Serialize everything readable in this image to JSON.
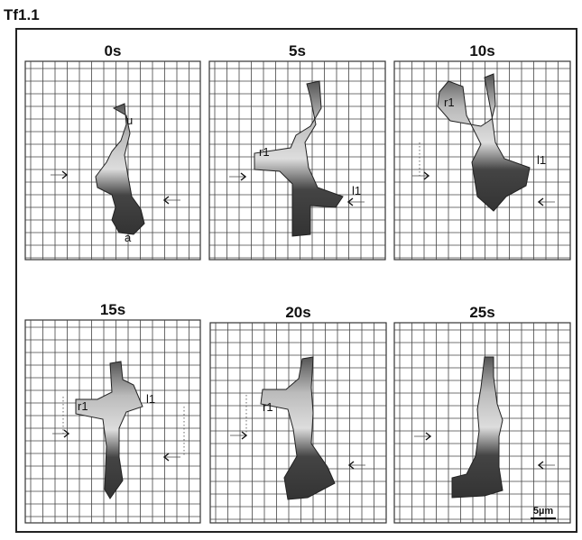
{
  "figure": {
    "label": "Tf1.1",
    "panels": [
      {
        "time": "0s",
        "annotations": [
          "u",
          "a"
        ]
      },
      {
        "time": "5s",
        "annotations": [
          "r1",
          "l1"
        ]
      },
      {
        "time": "10s",
        "annotations": [
          "r1",
          "l1"
        ]
      },
      {
        "time": "15s",
        "annotations": [
          "r1",
          "l1"
        ]
      },
      {
        "time": "20s",
        "annotations": [
          "r1"
        ]
      },
      {
        "time": "25s",
        "annotations": []
      }
    ],
    "scale_bar": "5µm"
  }
}
